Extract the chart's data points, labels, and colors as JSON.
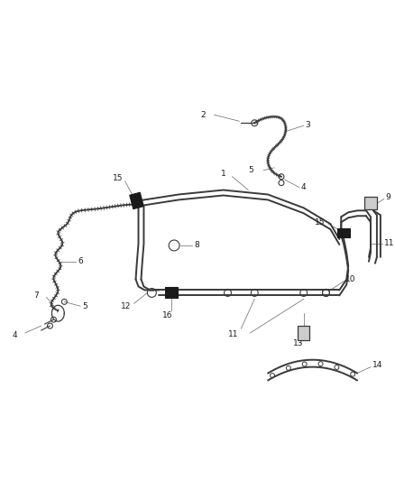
{
  "background_color": "#ffffff",
  "line_color": "#3a3a3a",
  "clamp_color": "#1a1a1a",
  "label_color": "#1a1a1a",
  "callout_color": "#666666",
  "fig_width": 4.38,
  "fig_height": 5.33,
  "dpi": 100,
  "lw_main": 1.4,
  "lw_hose": 1.0,
  "lw_callout": 0.5,
  "fs": 6.5
}
